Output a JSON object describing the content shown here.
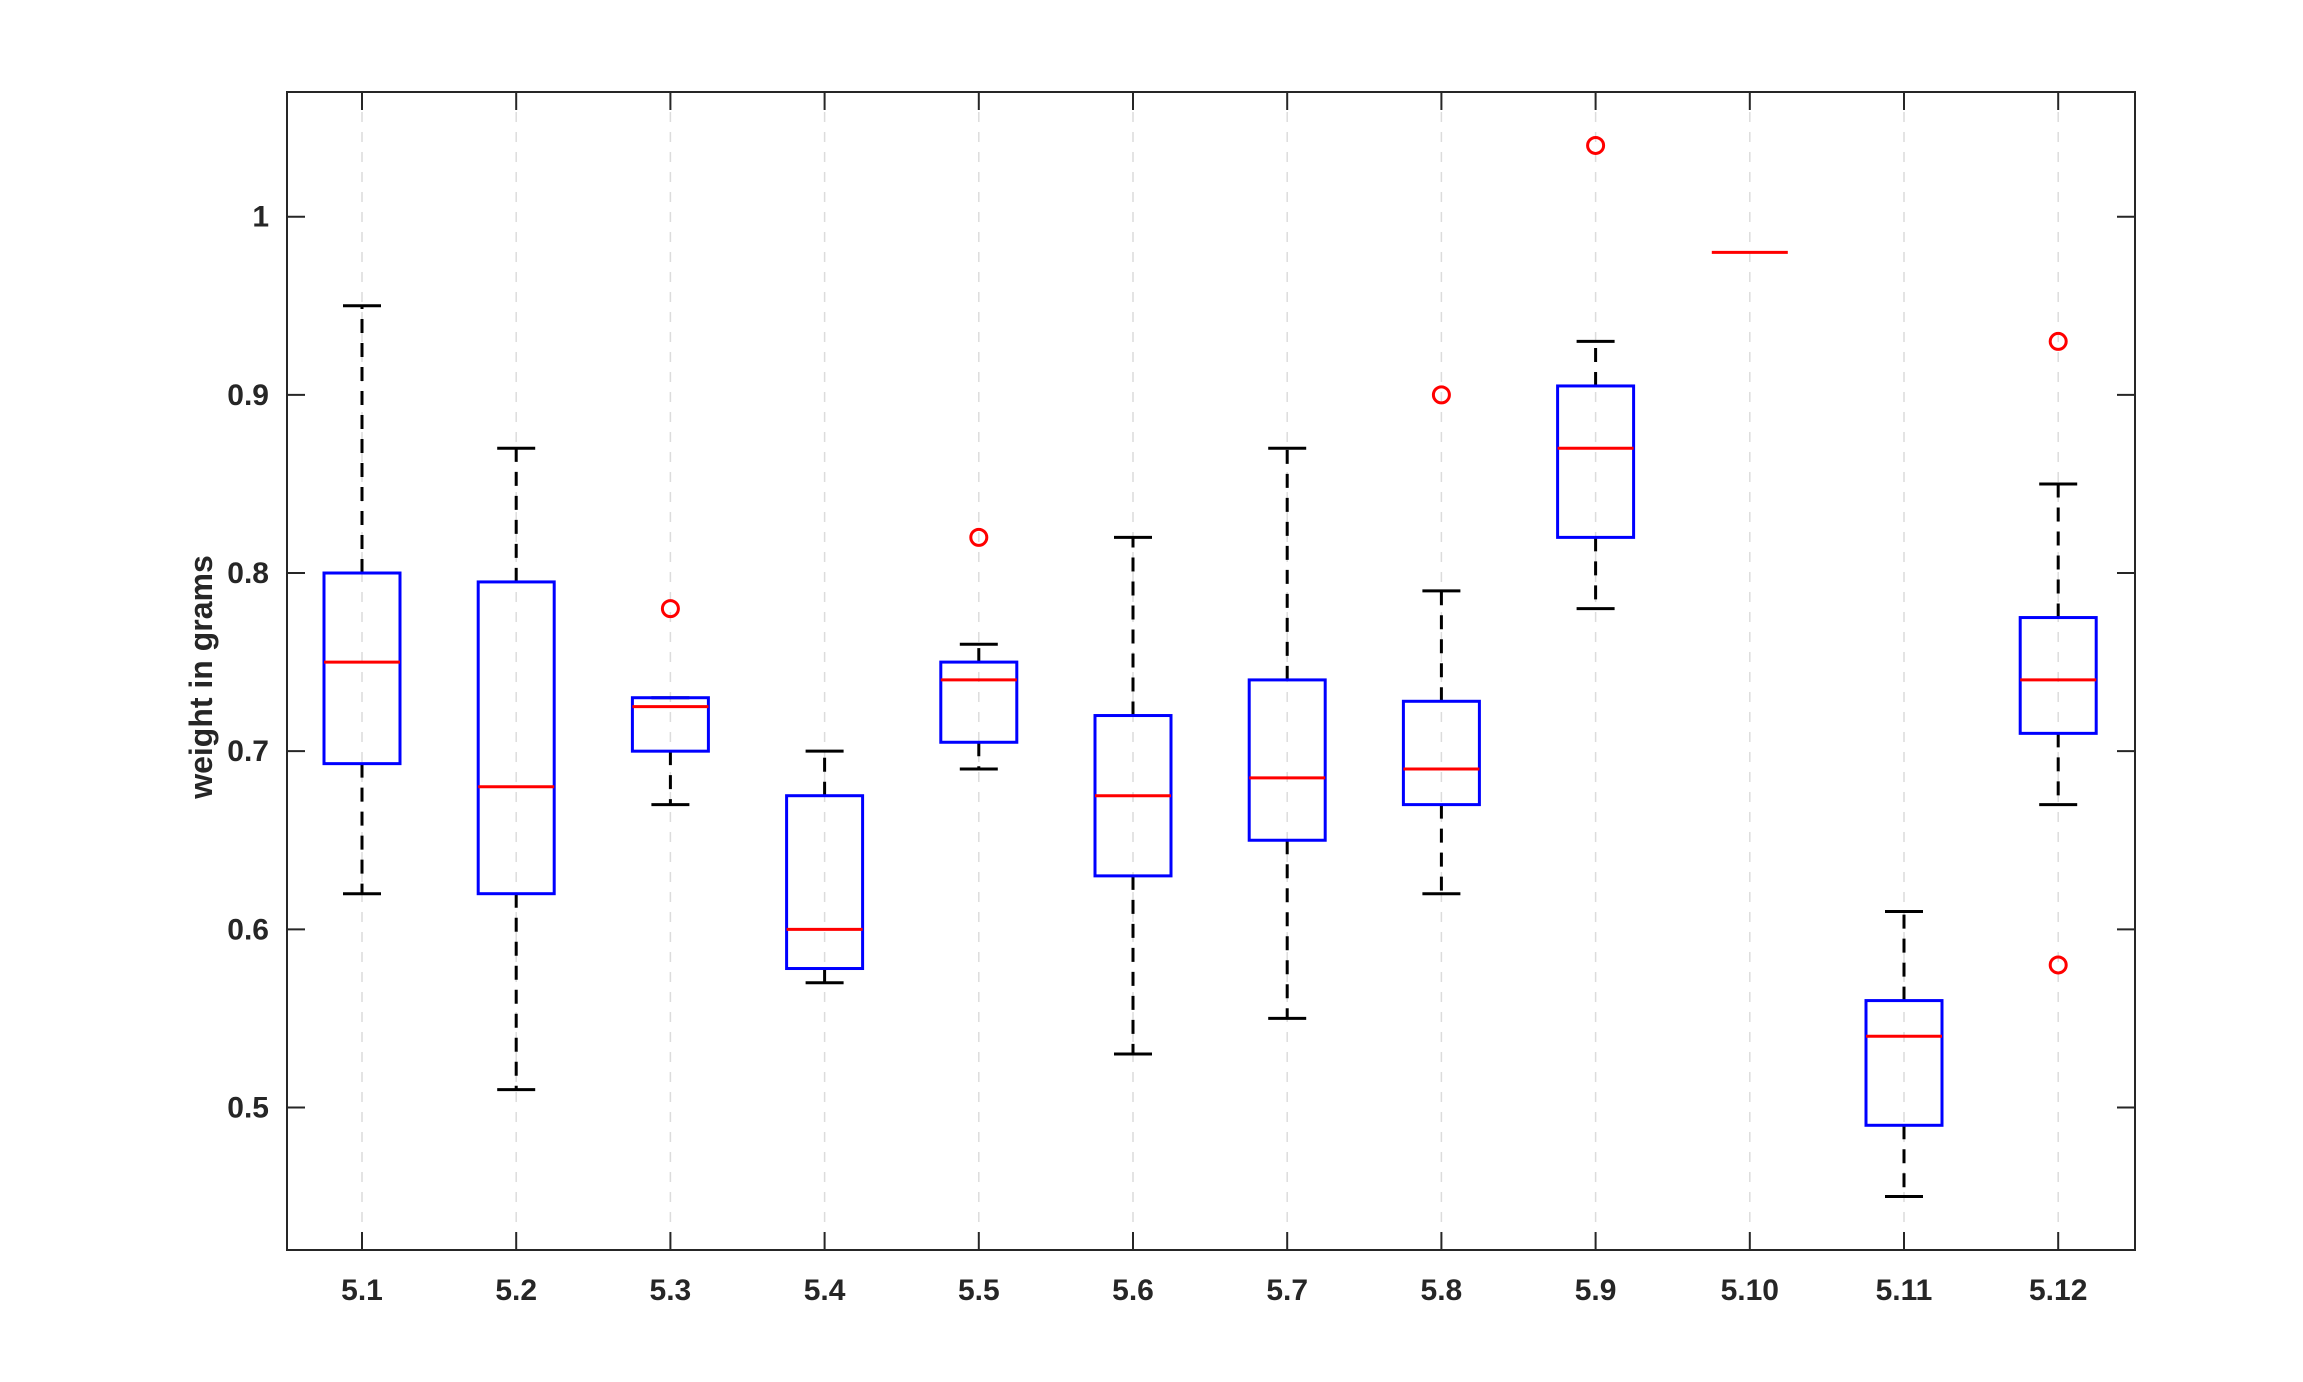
{
  "chart_data": {
    "type": "box",
    "title": "",
    "xlabel": "",
    "ylabel": "weight in grams",
    "ylim": [
      0.42,
      1.07
    ],
    "yticks": [
      0.5,
      0.6,
      0.7,
      0.8,
      0.9,
      1.0
    ],
    "ytick_labels": [
      "0.5",
      "0.6",
      "0.7",
      "0.8",
      "0.9",
      "1"
    ],
    "grid": "vertical dashed at x ticks",
    "categories": [
      "5.1",
      "5.2",
      "5.3",
      "5.4",
      "5.5",
      "5.6",
      "5.7",
      "5.8",
      "5.9",
      "5.10",
      "5.11",
      "5.12"
    ],
    "boxes": [
      {
        "category": "5.1",
        "whisker_low": 0.62,
        "q1": 0.693,
        "median": 0.75,
        "q3": 0.8,
        "whisker_high": 0.95,
        "outliers": []
      },
      {
        "category": "5.2",
        "whisker_low": 0.51,
        "q1": 0.62,
        "median": 0.68,
        "q3": 0.795,
        "whisker_high": 0.87,
        "outliers": []
      },
      {
        "category": "5.3",
        "whisker_low": 0.67,
        "q1": 0.7,
        "median": 0.725,
        "q3": 0.73,
        "whisker_high": 0.73,
        "outliers": [
          0.78
        ]
      },
      {
        "category": "5.4",
        "whisker_low": 0.57,
        "q1": 0.578,
        "median": 0.6,
        "q3": 0.675,
        "whisker_high": 0.7,
        "outliers": []
      },
      {
        "category": "5.5",
        "whisker_low": 0.69,
        "q1": 0.705,
        "median": 0.74,
        "q3": 0.75,
        "whisker_high": 0.76,
        "outliers": [
          0.82
        ]
      },
      {
        "category": "5.6",
        "whisker_low": 0.53,
        "q1": 0.63,
        "median": 0.675,
        "q3": 0.72,
        "whisker_high": 0.82,
        "outliers": []
      },
      {
        "category": "5.7",
        "whisker_low": 0.55,
        "q1": 0.65,
        "median": 0.685,
        "q3": 0.74,
        "whisker_high": 0.87,
        "outliers": []
      },
      {
        "category": "5.8",
        "whisker_low": 0.62,
        "q1": 0.67,
        "median": 0.69,
        "q3": 0.728,
        "whisker_high": 0.79,
        "outliers": [
          0.9
        ]
      },
      {
        "category": "5.9",
        "whisker_low": 0.78,
        "q1": 0.82,
        "median": 0.87,
        "q3": 0.905,
        "whisker_high": 0.93,
        "outliers": [
          1.04
        ]
      },
      {
        "category": "5.10",
        "whisker_low": 0.98,
        "q1": 0.98,
        "median": 0.98,
        "q3": 0.98,
        "whisker_high": 0.98,
        "outliers": []
      },
      {
        "category": "5.11",
        "whisker_low": 0.45,
        "q1": 0.49,
        "median": 0.54,
        "q3": 0.56,
        "whisker_high": 0.61,
        "outliers": []
      },
      {
        "category": "5.12",
        "whisker_low": 0.67,
        "q1": 0.71,
        "median": 0.74,
        "q3": 0.775,
        "whisker_high": 0.85,
        "outliers": [
          0.93,
          0.58
        ]
      }
    ],
    "colors": {
      "box": "#0000ff",
      "median": "#ff0000",
      "whisker": "#000000",
      "outlier": "#ff0000",
      "grid": "#dcdcdc",
      "axis": "#262626"
    }
  }
}
